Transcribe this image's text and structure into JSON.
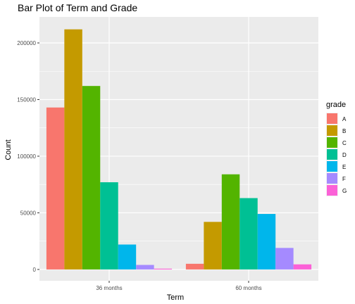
{
  "chart_data": {
    "type": "bar",
    "title": "Bar Plot of Term and Grade",
    "xlabel": "Term",
    "ylabel": "Count",
    "categories": [
      "36 months",
      "60 months"
    ],
    "ylim": [
      -10000,
      223000
    ],
    "yticks": [
      0,
      50000,
      100000,
      150000,
      200000
    ],
    "ytick_labels": [
      "0",
      "50000",
      "100000",
      "150000",
      "200000"
    ],
    "grid": true,
    "legend_title": "grade",
    "legend_position": "right",
    "series": [
      {
        "name": "A",
        "color": "#F8766D",
        "values": [
          143000,
          5000
        ]
      },
      {
        "name": "B",
        "color": "#C49A00",
        "values": [
          212000,
          42000
        ]
      },
      {
        "name": "C",
        "color": "#53B400",
        "values": [
          162000,
          84000
        ]
      },
      {
        "name": "D",
        "color": "#00C094",
        "values": [
          77000,
          63000
        ]
      },
      {
        "name": "E",
        "color": "#00B6EB",
        "values": [
          22000,
          49000
        ]
      },
      {
        "name": "F",
        "color": "#A58AFF",
        "values": [
          4000,
          19000
        ]
      },
      {
        "name": "G",
        "color": "#FB61D7",
        "values": [
          700,
          4500
        ]
      }
    ]
  }
}
